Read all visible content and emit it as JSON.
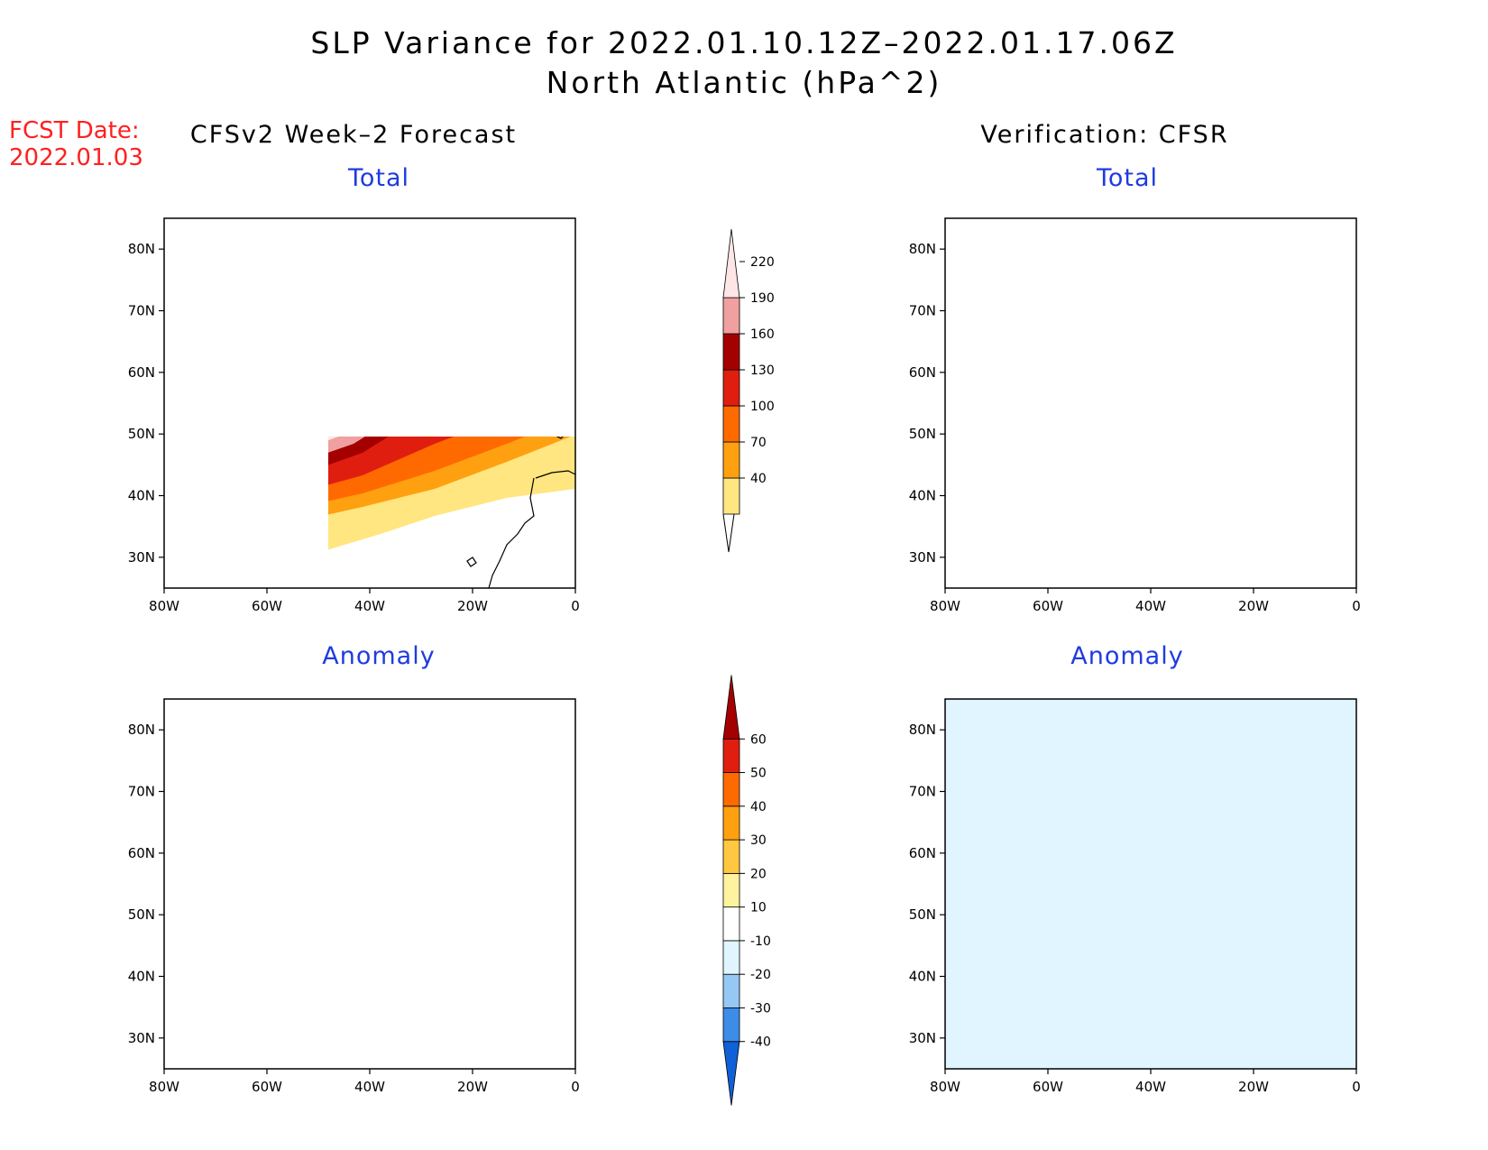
{
  "figure": {
    "title_line1": "SLP Variance for 2022.01.10.12Z–2022.01.17.06Z",
    "title_line2": "North Atlantic (hPa^2)",
    "fcst_label": "FCST Date:",
    "fcst_date": "2022.01.03",
    "left_column": "CFSv2 Week–2 Forecast",
    "right_column": "Verification: CFSR"
  },
  "panels": [
    {
      "id": "fc-total",
      "title": "Total"
    },
    {
      "id": "vf-total",
      "title": "Total"
    },
    {
      "id": "fc-anom",
      "title": "Anomaly"
    },
    {
      "id": "vf-anom",
      "title": "Anomaly"
    }
  ],
  "map_axes": {
    "lon_ticks": [
      "80W",
      "60W",
      "40W",
      "20W",
      "0"
    ],
    "lat_ticks": [
      "80N",
      "70N",
      "60N",
      "50N",
      "40N",
      "30N"
    ],
    "lon_range": [
      -80,
      0
    ],
    "lat_range": [
      25,
      85
    ]
  },
  "colorbars": {
    "total": {
      "levels": [
        "40",
        "70",
        "100",
        "130",
        "160",
        "190",
        "220"
      ],
      "colors": [
        "#ffe680",
        "#ffa010",
        "#ff6a00",
        "#e01e10",
        "#a50000",
        "#f0a0a0",
        "#ffe6e6"
      ]
    },
    "anomaly": {
      "levels": [
        "-40",
        "-30",
        "-20",
        "-10",
        "10",
        "20",
        "30",
        "40",
        "50",
        "60"
      ],
      "colors": [
        "#1060d8",
        "#3c8ce8",
        "#96c8f5",
        "#e0f5ff",
        "#ffffff",
        "#fff3a0",
        "#ffc840",
        "#ffa010",
        "#ff6a00",
        "#e01e10",
        "#a50000"
      ]
    }
  }
}
